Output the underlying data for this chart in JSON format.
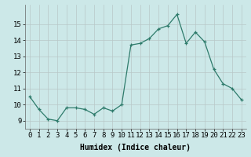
{
  "x": [
    0,
    1,
    2,
    3,
    4,
    5,
    6,
    7,
    8,
    9,
    10,
    11,
    12,
    13,
    14,
    15,
    16,
    17,
    18,
    19,
    20,
    21,
    22,
    23
  ],
  "y": [
    10.5,
    9.7,
    9.1,
    9.0,
    9.8,
    9.8,
    9.7,
    9.4,
    9.8,
    9.6,
    10.0,
    13.7,
    13.8,
    14.1,
    14.7,
    14.9,
    15.6,
    13.8,
    14.5,
    13.9,
    12.2,
    11.3,
    11.0,
    10.3
  ],
  "xlabel": "Humidex (Indice chaleur)",
  "ylim": [
    8.5,
    16.2
  ],
  "xlim": [
    -0.5,
    23.5
  ],
  "yticks": [
    9,
    10,
    11,
    12,
    13,
    14,
    15
  ],
  "xticks": [
    0,
    1,
    2,
    3,
    4,
    5,
    6,
    7,
    8,
    9,
    10,
    11,
    12,
    13,
    14,
    15,
    16,
    17,
    18,
    19,
    20,
    21,
    22,
    23
  ],
  "line_color": "#2e7b6b",
  "marker_color": "#2e7b6b",
  "bg_color": "#cce8e8",
  "grid_color": "#b8c8c8",
  "xlabel_fontsize": 7,
  "tick_fontsize": 6.5
}
